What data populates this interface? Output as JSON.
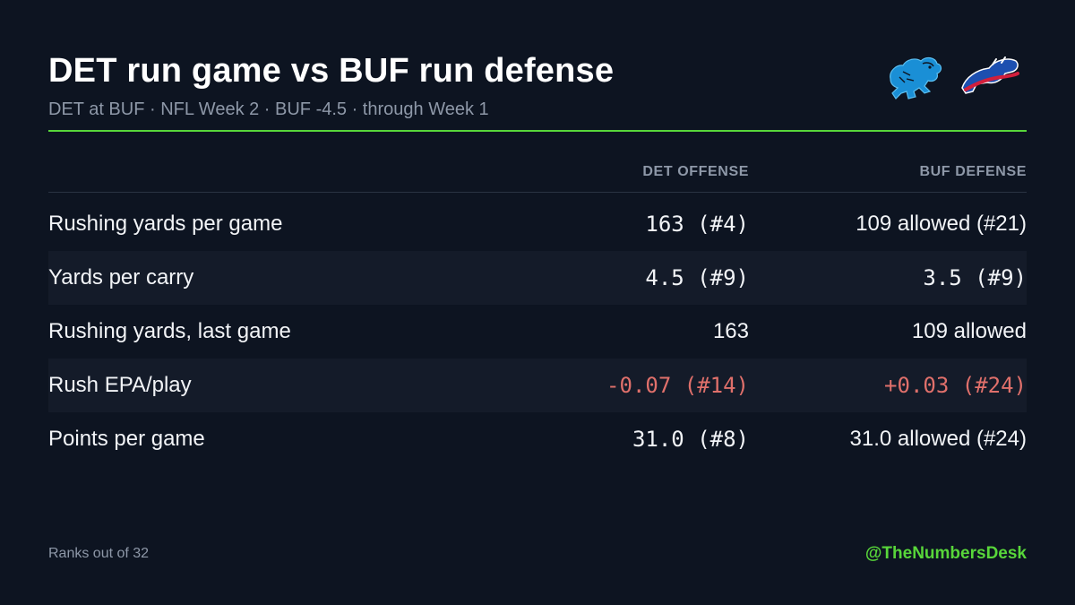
{
  "header": {
    "title": "DET run game vs BUF run defense",
    "subtitle": "DET at BUF · NFL Week 2 · BUF -4.5 · through Week 1"
  },
  "logos": [
    {
      "team": "DET",
      "icon": "lions-logo",
      "color": "#1a8fd6"
    },
    {
      "team": "BUF",
      "icon": "bills-logo",
      "color": "#d21f3c"
    }
  ],
  "colors": {
    "accent": "#58d63a",
    "negative": "#e0706b",
    "text": "#f2f4f7",
    "muted": "#8e98a8"
  },
  "table": {
    "columns": {
      "det": "DET OFFENSE",
      "buf": "BUF DEFENSE"
    },
    "rows": [
      {
        "label": "Rushing yards per game",
        "det": "163 (#4)",
        "buf": "109 allowed (#21)",
        "det_style": "mono",
        "buf_style": "sans",
        "highlight": false
      },
      {
        "label": "Yards per carry",
        "det": "4.5 (#9)",
        "buf": "3.5 (#9)",
        "det_style": "mono",
        "buf_style": "mono",
        "highlight": false
      },
      {
        "label": "Rushing yards, last game",
        "det": "163",
        "buf": "109 allowed",
        "det_style": "sans",
        "buf_style": "sans",
        "highlight": false
      },
      {
        "label": "Rush EPA/play",
        "det": "-0.07 (#14)",
        "buf": "+0.03 (#24)",
        "det_style": "mono",
        "buf_style": "mono",
        "highlight": true
      },
      {
        "label": "Points per game",
        "det": "31.0 (#8)",
        "buf": "31.0 allowed (#24)",
        "det_style": "mono",
        "buf_style": "sans",
        "highlight": false
      }
    ]
  },
  "footer": {
    "note": "Ranks out of 32",
    "handle": "@TheNumbersDesk"
  }
}
